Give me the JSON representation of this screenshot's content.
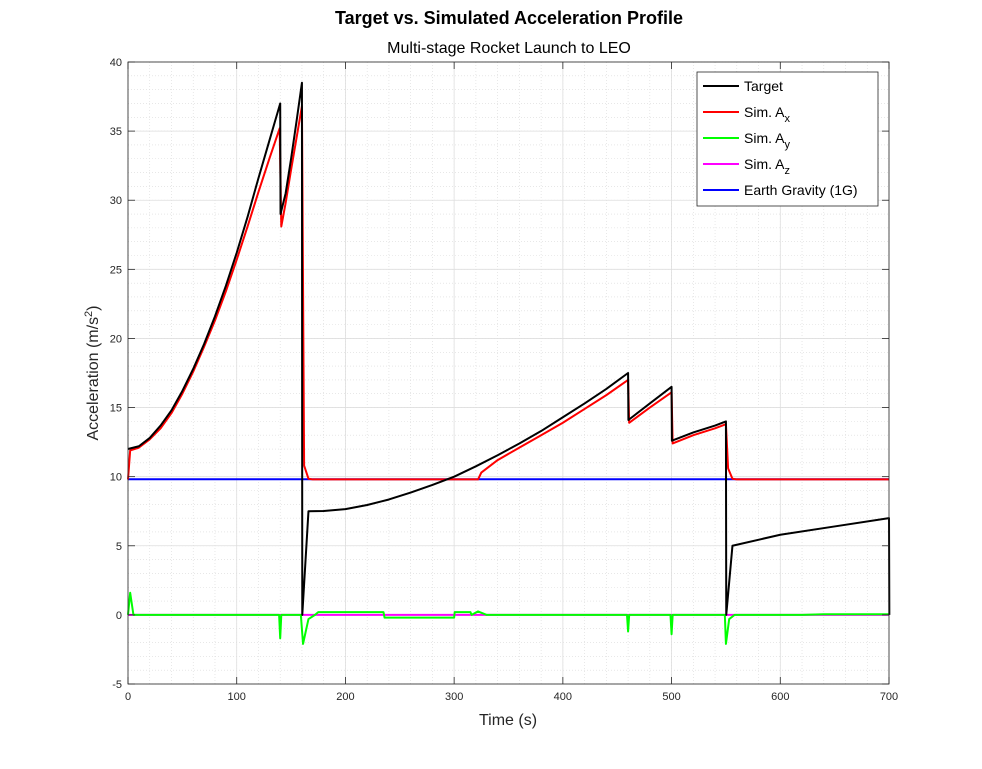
{
  "chart_data": {
    "type": "line",
    "title": "Target vs. Simulated Acceleration Profile",
    "subtitle": "Multi-stage Rocket Launch to LEO",
    "xlabel": "Time (s)",
    "ylabel": {
      "base": "Acceleration (m/s",
      "sup": "2",
      "tail": ")"
    },
    "xlim": [
      0,
      700
    ],
    "ylim": [
      -5,
      40
    ],
    "xticks": [
      0,
      100,
      200,
      300,
      400,
      500,
      600,
      700
    ],
    "yticks": [
      -5,
      0,
      5,
      10,
      15,
      20,
      25,
      30,
      35,
      40
    ],
    "grid": true,
    "minor_grid": true,
    "legend_position": "top-right",
    "series": [
      {
        "name": "Target",
        "color": "#000000",
        "points": [
          [
            0,
            12
          ],
          [
            10,
            12.2
          ],
          [
            20,
            12.8
          ],
          [
            30,
            13.7
          ],
          [
            40,
            14.8
          ],
          [
            50,
            16.2
          ],
          [
            60,
            17.8
          ],
          [
            70,
            19.6
          ],
          [
            80,
            21.6
          ],
          [
            90,
            23.8
          ],
          [
            100,
            26.2
          ],
          [
            110,
            28.8
          ],
          [
            120,
            31.6
          ],
          [
            130,
            34.3
          ],
          [
            140,
            37
          ],
          [
            140.3,
            29
          ],
          [
            145,
            30.5
          ],
          [
            150,
            33
          ],
          [
            155,
            35.7
          ],
          [
            160,
            38.5
          ],
          [
            160.3,
            0
          ],
          [
            166,
            7.5
          ],
          [
            180,
            7.52
          ],
          [
            200,
            7.65
          ],
          [
            220,
            7.95
          ],
          [
            240,
            8.35
          ],
          [
            260,
            8.85
          ],
          [
            280,
            9.4
          ],
          [
            300,
            10.0
          ],
          [
            320,
            10.75
          ],
          [
            340,
            11.55
          ],
          [
            360,
            12.4
          ],
          [
            380,
            13.3
          ],
          [
            400,
            14.3
          ],
          [
            420,
            15.3
          ],
          [
            440,
            16.35
          ],
          [
            460,
            17.5
          ],
          [
            460.3,
            14.1
          ],
          [
            480,
            15.3
          ],
          [
            500,
            16.5
          ],
          [
            500.3,
            12.6
          ],
          [
            520,
            13.2
          ],
          [
            540,
            13.7
          ],
          [
            550,
            14.0
          ],
          [
            550.3,
            0
          ],
          [
            556,
            5
          ],
          [
            600,
            5.8
          ],
          [
            650,
            6.4
          ],
          [
            700,
            7.0
          ],
          [
            700.3,
            0
          ]
        ]
      },
      {
        "name": "Sim. A",
        "sub": "x",
        "color": "#ff0000",
        "points": [
          [
            0,
            9.8
          ],
          [
            2,
            11.9
          ],
          [
            10,
            12.1
          ],
          [
            20,
            12.7
          ],
          [
            30,
            13.5
          ],
          [
            40,
            14.6
          ],
          [
            50,
            16.0
          ],
          [
            60,
            17.6
          ],
          [
            70,
            19.4
          ],
          [
            80,
            21.3
          ],
          [
            90,
            23.4
          ],
          [
            100,
            25.7
          ],
          [
            110,
            28.1
          ],
          [
            120,
            30.6
          ],
          [
            130,
            33.0
          ],
          [
            139.5,
            35.2
          ],
          [
            141,
            28.1
          ],
          [
            145,
            29.8
          ],
          [
            150,
            32.2
          ],
          [
            155,
            34.5
          ],
          [
            160,
            36.8
          ],
          [
            162,
            10.8
          ],
          [
            166,
            9.85
          ],
          [
            170,
            9.8
          ],
          [
            322,
            9.8
          ],
          [
            325,
            10.3
          ],
          [
            340,
            11.2
          ],
          [
            360,
            12.1
          ],
          [
            380,
            13.0
          ],
          [
            400,
            13.9
          ],
          [
            420,
            14.9
          ],
          [
            440,
            15.9
          ],
          [
            460,
            17.0
          ],
          [
            461,
            13.9
          ],
          [
            480,
            15.0
          ],
          [
            500,
            16.1
          ],
          [
            501,
            12.4
          ],
          [
            520,
            13.0
          ],
          [
            540,
            13.5
          ],
          [
            550,
            13.8
          ],
          [
            552,
            10.6
          ],
          [
            556,
            9.85
          ],
          [
            560,
            9.8
          ],
          [
            700,
            9.8
          ]
        ]
      },
      {
        "name": "Sim. A",
        "sub": "y",
        "color": "#00ff00",
        "points": [
          [
            0,
            0
          ],
          [
            2,
            1.6
          ],
          [
            5,
            0
          ],
          [
            139,
            0
          ],
          [
            140,
            -1.7
          ],
          [
            141,
            0
          ],
          [
            159,
            0
          ],
          [
            161,
            -2.1
          ],
          [
            166,
            -0.3
          ],
          [
            172,
            0
          ],
          [
            175,
            0.2
          ],
          [
            235,
            0.2
          ],
          [
            236,
            -0.2
          ],
          [
            300,
            -0.2
          ],
          [
            300.5,
            0.2
          ],
          [
            315,
            0.2
          ],
          [
            316,
            0
          ],
          [
            322,
            0.25
          ],
          [
            330,
            0
          ],
          [
            459,
            0
          ],
          [
            460,
            -1.2
          ],
          [
            461,
            0
          ],
          [
            499,
            0
          ],
          [
            500,
            -1.4
          ],
          [
            501,
            0
          ],
          [
            549,
            0
          ],
          [
            550,
            -2.1
          ],
          [
            553,
            -0.3
          ],
          [
            558,
            0
          ],
          [
            620,
            0
          ],
          [
            640,
            0.05
          ],
          [
            700,
            0.05
          ]
        ]
      },
      {
        "name": "Sim. A",
        "sub": "z",
        "color": "#ff00ff",
        "points": [
          [
            0,
            0
          ],
          [
            700,
            0
          ]
        ]
      },
      {
        "name": "Earth Gravity (1G)",
        "color": "#0000ff",
        "points": [
          [
            0,
            9.81
          ],
          [
            700,
            9.81
          ]
        ]
      }
    ]
  }
}
